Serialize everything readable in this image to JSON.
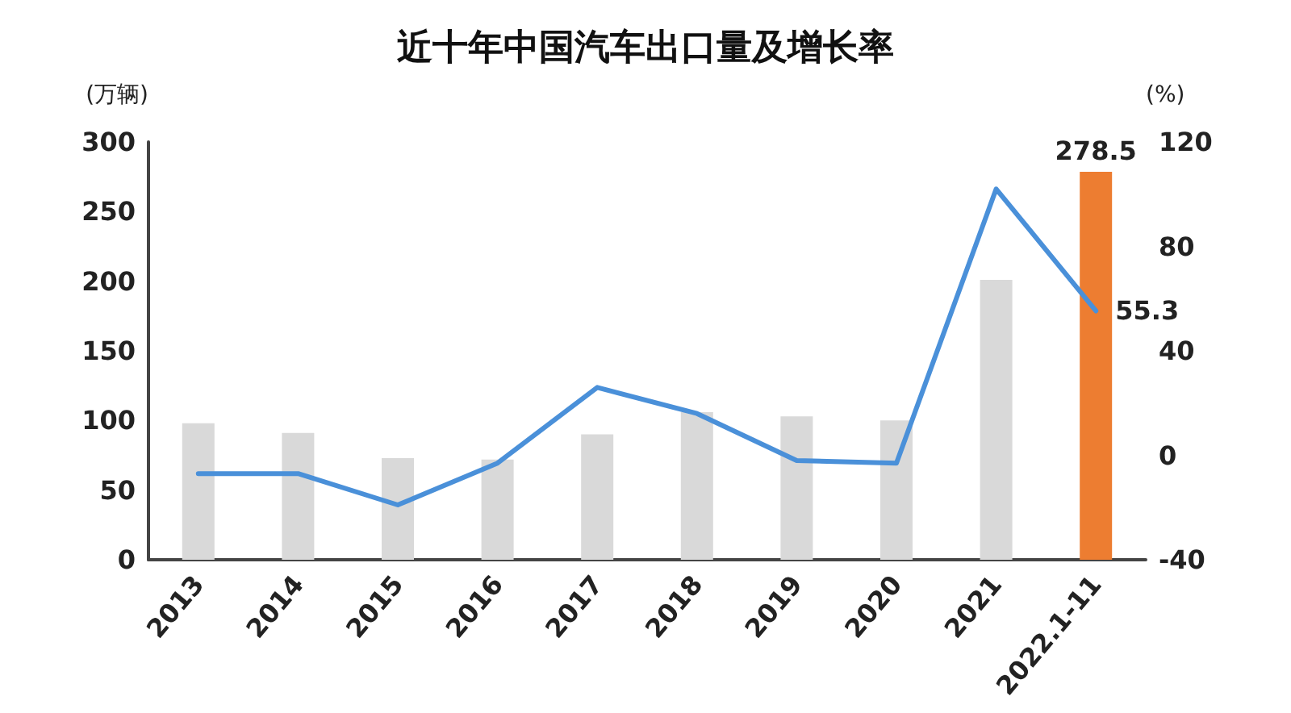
{
  "chart_data": {
    "type": "bar",
    "title": "近十年中国汽车出口量及增长率",
    "ylabel": "(万辆)",
    "y2label": "(%)",
    "categories": [
      "2013",
      "2014",
      "2015",
      "2016",
      "2017",
      "2018",
      "2019",
      "2020",
      "2021",
      "2022.1-11"
    ],
    "series": [
      {
        "colors": [
          "#d9d9d9",
          "#d9d9d9",
          "#d9d9d9",
          "#d9d9d9",
          "#d9d9d9",
          "#d9d9d9",
          "#d9d9d9",
          "#d9d9d9",
          "#d9d9d9",
          "#ed7d31"
        ],
        "values": [
          98,
          91,
          73,
          72,
          90,
          106,
          103,
          100,
          201,
          278.5
        ],
        "value_labels": [
          null,
          null,
          null,
          null,
          null,
          null,
          null,
          null,
          null,
          "278.5"
        ]
      },
      {
        "type": "line",
        "axis": "y2",
        "color": "#4a90d9",
        "values": [
          -7,
          -7,
          -19,
          -3,
          26,
          16,
          -2,
          -3,
          102,
          55.3
        ],
        "value_labels": [
          null,
          null,
          null,
          null,
          null,
          null,
          null,
          null,
          null,
          "55.3"
        ]
      }
    ],
    "ylim": [
      0,
      300
    ],
    "yticks": [
      0,
      50,
      100,
      150,
      200,
      250,
      300
    ],
    "y2lim": [
      -40,
      120
    ],
    "y2ticks": [
      -40,
      0,
      40,
      80,
      120
    ],
    "grid": false,
    "marker": "none",
    "line_style": "solid"
  }
}
